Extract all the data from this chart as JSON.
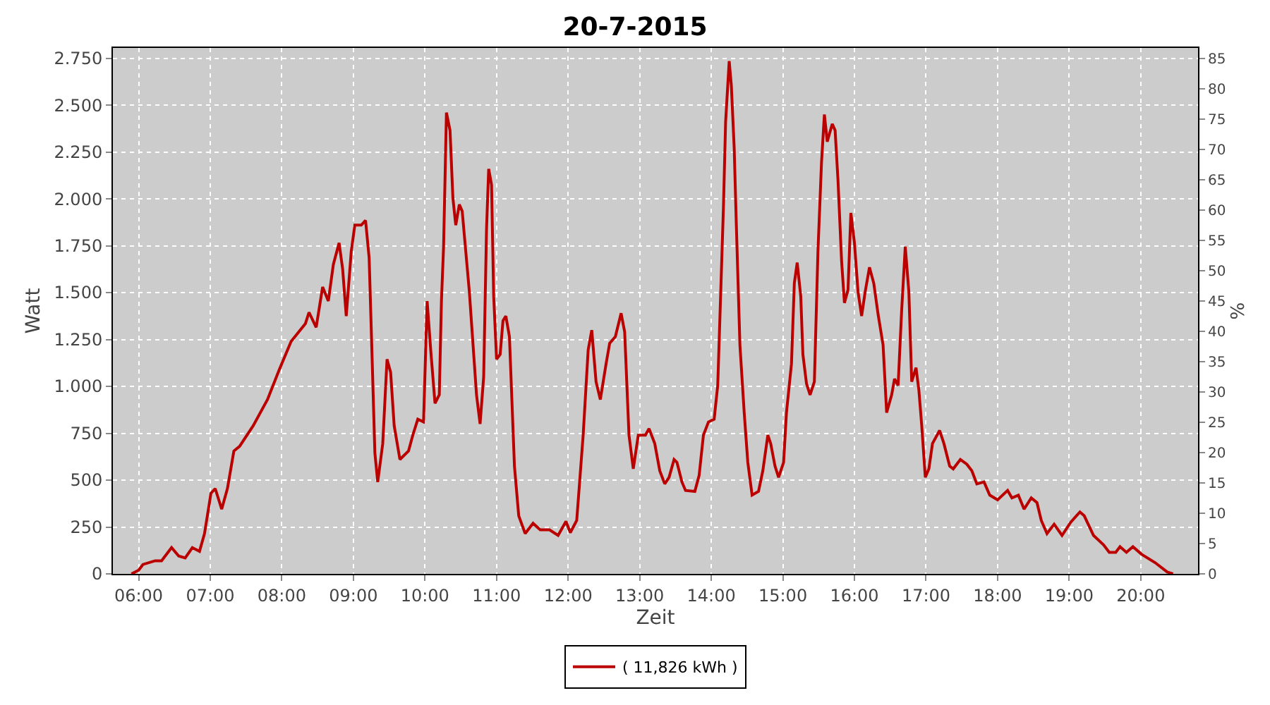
{
  "chart_data": {
    "type": "line",
    "title": "20-7-2015",
    "xlabel": "Zeit",
    "ylabel": "Watt",
    "y2label": "%",
    "series": [
      {
        "name": "( 11,826 kWh )",
        "color": "#bb0000",
        "x": [
          5.9,
          6.0,
          6.06,
          6.23,
          6.32,
          6.46,
          6.56,
          6.65,
          6.75,
          6.85,
          6.92,
          7.01,
          7.07,
          7.16,
          7.24,
          7.33,
          7.41,
          7.6,
          7.8,
          7.96,
          8.13,
          8.33,
          8.38,
          8.48,
          8.57,
          8.65,
          8.72,
          8.8,
          8.85,
          8.9,
          8.97,
          9.02,
          9.11,
          9.17,
          9.22,
          9.26,
          9.3,
          9.34,
          9.41,
          9.47,
          9.52,
          9.57,
          9.65,
          9.77,
          9.83,
          9.9,
          9.98,
          10.03,
          10.08,
          10.14,
          10.2,
          10.23,
          10.26,
          10.3,
          10.35,
          10.39,
          10.43,
          10.48,
          10.52,
          10.62,
          10.72,
          10.77,
          10.82,
          10.86,
          10.89,
          10.93,
          10.96,
          11.0,
          11.05,
          11.09,
          11.13,
          11.18,
          11.25,
          11.31,
          11.4,
          11.51,
          11.61,
          11.74,
          11.86,
          11.97,
          12.03,
          12.12,
          12.21,
          12.28,
          12.33,
          12.39,
          12.45,
          12.53,
          12.58,
          12.66,
          12.74,
          12.79,
          12.85,
          12.91,
          12.98,
          13.08,
          13.13,
          13.21,
          13.28,
          13.35,
          13.41,
          13.48,
          13.52,
          13.59,
          13.64,
          13.77,
          13.83,
          13.89,
          13.96,
          14.04,
          14.09,
          14.13,
          14.17,
          14.2,
          14.25,
          14.28,
          14.32,
          14.35,
          14.4,
          14.46,
          14.51,
          14.57,
          14.66,
          14.72,
          14.79,
          14.83,
          14.89,
          14.94,
          15.01,
          15.05,
          15.12,
          15.16,
          15.2,
          15.25,
          15.28,
          15.33,
          15.38,
          15.44,
          15.49,
          15.54,
          15.58,
          15.62,
          15.69,
          15.73,
          15.77,
          15.82,
          15.86,
          15.91,
          15.95,
          16.0,
          16.05,
          16.1,
          16.15,
          16.21,
          16.27,
          16.33,
          16.4,
          16.45,
          16.52,
          16.56,
          16.61,
          16.66,
          16.71,
          16.76,
          16.8,
          16.86,
          16.9,
          16.94,
          16.99,
          17.04,
          17.09,
          17.19,
          17.25,
          17.33,
          17.38,
          17.48,
          17.57,
          17.64,
          17.71,
          17.81,
          17.89,
          18.0,
          18.14,
          18.2,
          18.29,
          18.37,
          18.47,
          18.55,
          18.61,
          18.69,
          18.79,
          18.9,
          19.02,
          19.15,
          19.21,
          19.34,
          19.48,
          19.56,
          19.65,
          19.71,
          19.8,
          19.89,
          20.01,
          20.2,
          20.37,
          20.45
        ],
        "values": [
          0,
          20,
          50,
          70,
          70,
          140,
          95,
          85,
          140,
          120,
          215,
          430,
          455,
          345,
          455,
          655,
          680,
          790,
          930,
          1085,
          1240,
          1335,
          1395,
          1315,
          1530,
          1455,
          1650,
          1765,
          1625,
          1375,
          1720,
          1860,
          1860,
          1885,
          1685,
          1170,
          645,
          490,
          695,
          1145,
          1075,
          790,
          610,
          655,
          740,
          825,
          810,
          1455,
          1195,
          910,
          955,
          1455,
          1745,
          2460,
          2365,
          2005,
          1860,
          1970,
          1935,
          1505,
          955,
          800,
          1050,
          1840,
          2160,
          2075,
          1480,
          1145,
          1170,
          1350,
          1375,
          1265,
          575,
          310,
          215,
          270,
          235,
          235,
          205,
          280,
          220,
          285,
          740,
          1195,
          1300,
          1025,
          930,
          1120,
          1230,
          1265,
          1390,
          1290,
          740,
          560,
          740,
          740,
          775,
          695,
          550,
          480,
          515,
          610,
          595,
          490,
          445,
          440,
          525,
          740,
          810,
          825,
          1005,
          1480,
          1960,
          2410,
          2735,
          2605,
          2270,
          1860,
          1220,
          860,
          595,
          420,
          440,
          550,
          740,
          695,
          575,
          515,
          595,
          860,
          1120,
          1550,
          1660,
          1480,
          1170,
          1015,
          955,
          1025,
          1720,
          2195,
          2450,
          2305,
          2400,
          2365,
          2100,
          1670,
          1445,
          1515,
          1925,
          1765,
          1505,
          1375,
          1505,
          1635,
          1550,
          1385,
          1220,
          860,
          955,
          1040,
          1005,
          1410,
          1745,
          1505,
          1025,
          1100,
          980,
          790,
          515,
          560,
          695,
          765,
          695,
          575,
          560,
          610,
          585,
          550,
          480,
          490,
          420,
          395,
          445,
          405,
          420,
          345,
          405,
          380,
          285,
          215,
          265,
          205,
          275,
          330,
          310,
          205,
          155,
          115,
          115,
          145,
          115,
          145,
          105,
          60,
          10,
          0
        ]
      }
    ],
    "xlim": [
      5.64,
      20.8
    ],
    "xticks": [
      {
        "value": 6,
        "label": "06:00"
      },
      {
        "value": 7,
        "label": "07:00"
      },
      {
        "value": 8,
        "label": "08:00"
      },
      {
        "value": 9,
        "label": "09:00"
      },
      {
        "value": 10,
        "label": "10:00"
      },
      {
        "value": 11,
        "label": "11:00"
      },
      {
        "value": 12,
        "label": "12:00"
      },
      {
        "value": 13,
        "label": "13:00"
      },
      {
        "value": 14,
        "label": "14:00"
      },
      {
        "value": 15,
        "label": "15:00"
      },
      {
        "value": 16,
        "label": "16:00"
      },
      {
        "value": 17,
        "label": "17:00"
      },
      {
        "value": 18,
        "label": "18:00"
      },
      {
        "value": 19,
        "label": "19:00"
      },
      {
        "value": 20,
        "label": "20:00"
      }
    ],
    "ylim": [
      0,
      2805
    ],
    "yticks": [
      {
        "value": 0,
        "label": "0"
      },
      {
        "value": 250,
        "label": "250"
      },
      {
        "value": 500,
        "label": "500"
      },
      {
        "value": 750,
        "label": "750"
      },
      {
        "value": 1000,
        "label": "1.000"
      },
      {
        "value": 1250,
        "label": "1.250"
      },
      {
        "value": 1500,
        "label": "1.500"
      },
      {
        "value": 1750,
        "label": "1.750"
      },
      {
        "value": 2000,
        "label": "2.000"
      },
      {
        "value": 2250,
        "label": "2.250"
      },
      {
        "value": 2500,
        "label": "2.500"
      },
      {
        "value": 2750,
        "label": "2.750"
      }
    ],
    "y2lim": [
      0,
      86.8
    ],
    "y2ticks": [
      0,
      5,
      10,
      15,
      20,
      25,
      30,
      35,
      40,
      45,
      50,
      55,
      60,
      65,
      70,
      75,
      80,
      85
    ],
    "grid": true,
    "legend": "bottom",
    "line_style": "solid",
    "marker": "none"
  }
}
